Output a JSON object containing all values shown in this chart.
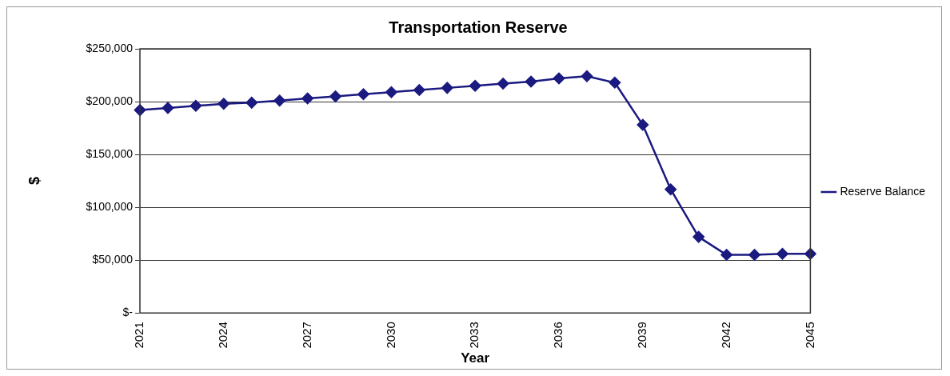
{
  "chart_data": {
    "type": "line",
    "title": "Transportation Reserve",
    "xlabel": "Year",
    "ylabel": "$",
    "categories": [
      "2021",
      null,
      null,
      "2024",
      null,
      null,
      "2027",
      null,
      null,
      "2030",
      null,
      null,
      "2033",
      null,
      null,
      "2036",
      null,
      null,
      "2039",
      null,
      null,
      "2042",
      null,
      null,
      "2045"
    ],
    "series": [
      {
        "name": "Reserve Balance",
        "color": "#1a1a80",
        "values": [
          192000,
          194000,
          196000,
          198000,
          199000,
          201000,
          203000,
          205000,
          207000,
          209000,
          211000,
          213000,
          215000,
          217000,
          219000,
          222000,
          224000,
          218000,
          178000,
          117000,
          72000,
          55000,
          55000,
          56000,
          56000
        ]
      }
    ],
    "ylim": [
      0,
      250000
    ],
    "yticks": [
      {
        "value": 0,
        "label": "$-"
      },
      {
        "value": 50000,
        "label": "$50,000"
      },
      {
        "value": 100000,
        "label": "$100,000"
      },
      {
        "value": 150000,
        "label": "$150,000"
      },
      {
        "value": 200000,
        "label": "$200,000"
      },
      {
        "value": 250000,
        "label": "$250,000"
      }
    ],
    "grid": "y",
    "legend": "right",
    "marker": "diamond",
    "line_style": "solid"
  }
}
